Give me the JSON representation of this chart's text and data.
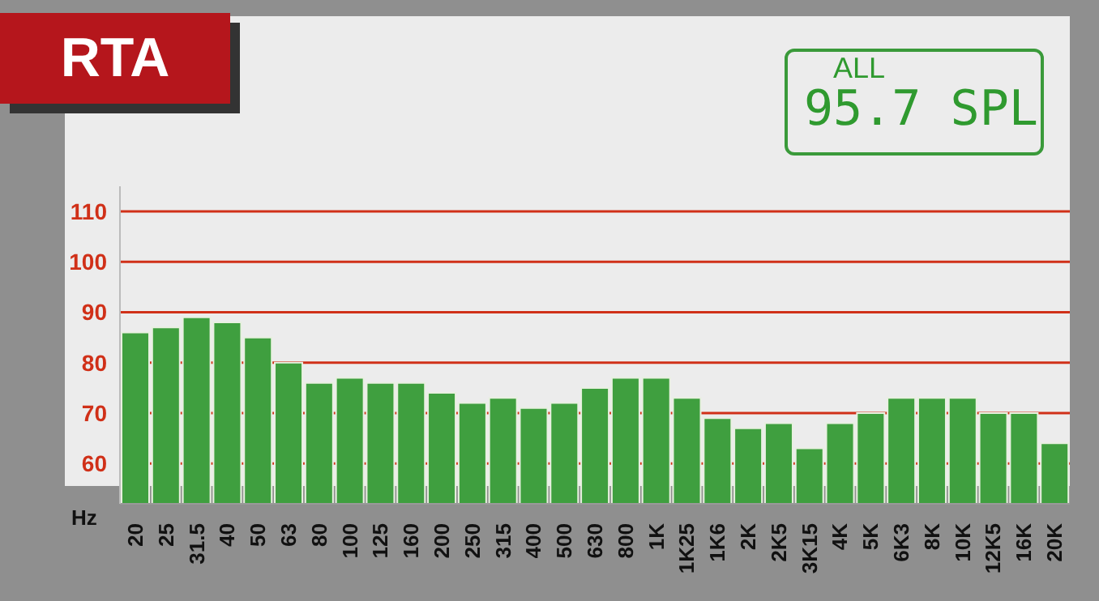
{
  "chart_data": {
    "type": "bar",
    "title": "RTA",
    "xlabel": "Hz",
    "annotations": [
      "ALL",
      "95.7 SPL"
    ],
    "categories": [
      "20",
      "25",
      "31.5",
      "40",
      "50",
      "63",
      "80",
      "100",
      "125",
      "160",
      "200",
      "250",
      "315",
      "400",
      "500",
      "630",
      "800",
      "1K",
      "1K25",
      "1K6",
      "2K",
      "2K5",
      "3K15",
      "4K",
      "5K",
      "6K3",
      "8K",
      "10K",
      "12K5",
      "16K",
      "20K"
    ],
    "values": [
      86,
      87,
      89,
      88,
      85,
      80,
      76,
      77,
      76,
      76,
      74,
      72,
      73,
      71,
      72,
      75,
      77,
      77,
      73,
      69,
      67,
      68,
      63,
      68,
      70,
      73,
      73,
      73,
      70,
      70,
      64
    ],
    "color": "#3f9f3f",
    "ylim": [
      52,
      115
    ],
    "yticks": [
      60,
      70,
      80,
      90,
      100,
      110
    ],
    "grid": "y"
  }
}
